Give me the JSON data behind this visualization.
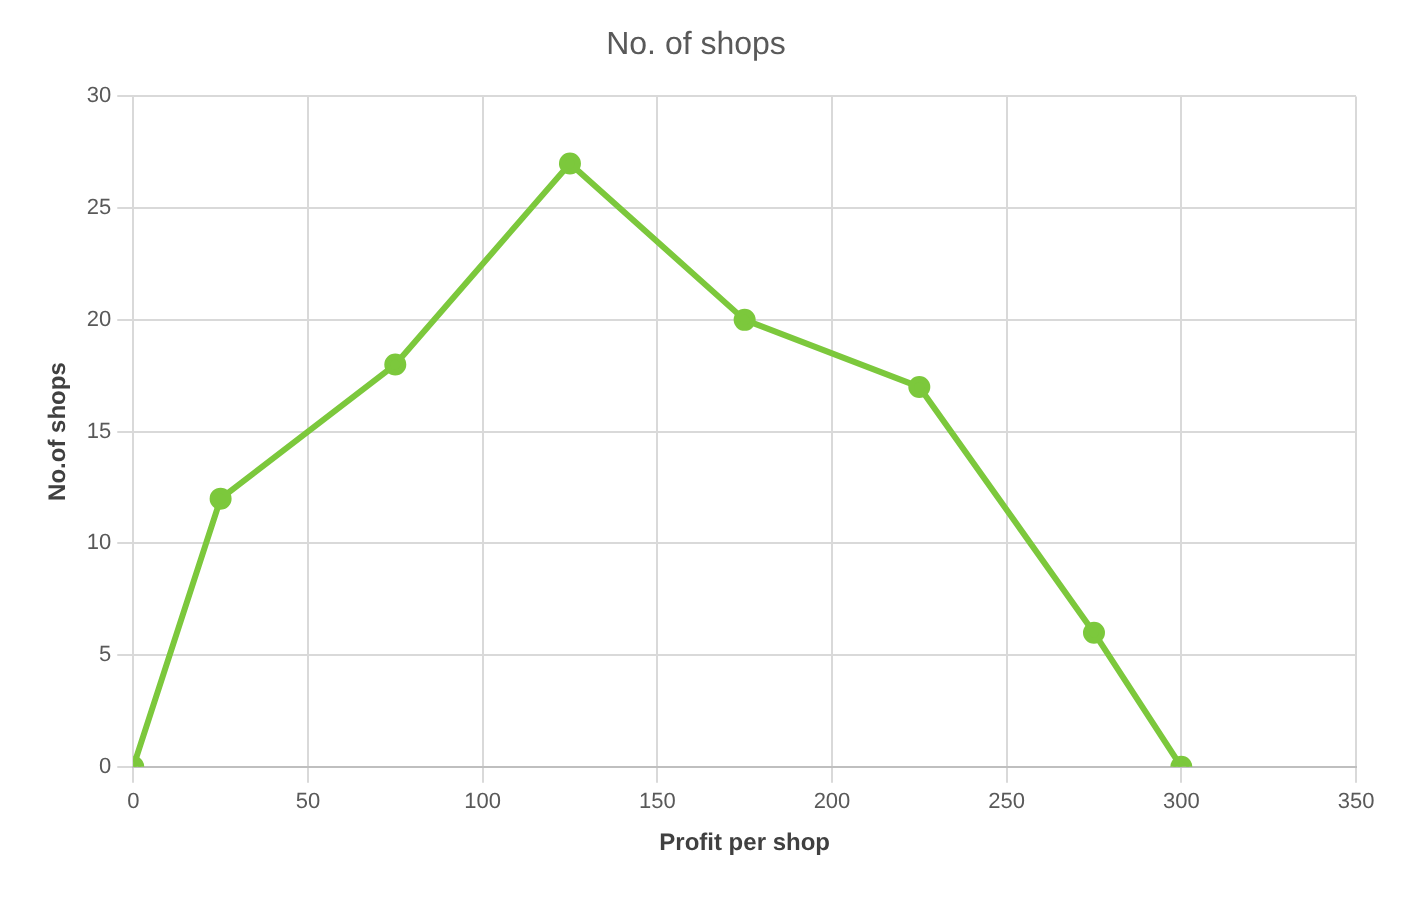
{
  "chart_data": {
    "type": "line",
    "title": "No. of shops",
    "xlabel": "Profit per shop",
    "ylabel": "No.of shops",
    "x": [
      0,
      25,
      75,
      125,
      175,
      225,
      275,
      300
    ],
    "series": [
      {
        "color": "#7cc83c",
        "values": [
          0,
          12,
          18,
          27,
          20,
          17,
          6,
          0
        ]
      }
    ],
    "xlim": [
      0,
      350
    ],
    "xticks": [
      0,
      50,
      100,
      150,
      200,
      250,
      300,
      350
    ],
    "ylim": [
      0,
      30
    ],
    "yticks": [
      0,
      5,
      10,
      15,
      20,
      25,
      30
    ],
    "grid": true,
    "legend": false,
    "marker": "circle",
    "line_style": "solid"
  }
}
